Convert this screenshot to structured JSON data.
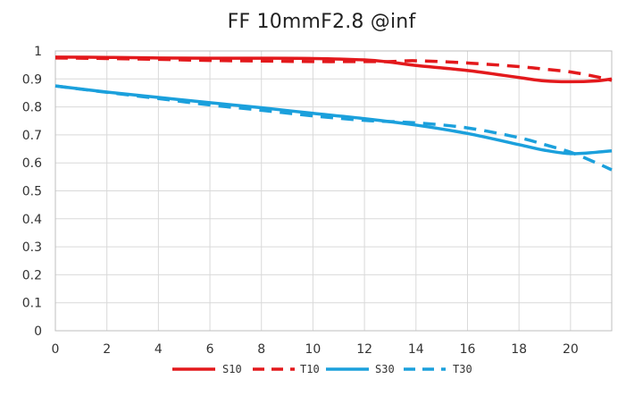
{
  "chart_data": {
    "type": "line",
    "title": "FF 10mmF2.8 @inf",
    "xlabel": "",
    "ylabel": "",
    "xlim": [
      0,
      21.6
    ],
    "ylim": [
      0,
      1
    ],
    "xticks": [
      0,
      2,
      4,
      6,
      8,
      10,
      12,
      14,
      16,
      18,
      20
    ],
    "yticks": [
      0,
      0.1,
      0.2,
      0.3,
      0.4,
      0.5,
      0.6,
      0.7,
      0.8,
      0.9,
      1
    ],
    "ytick_labels": [
      "0",
      "0.1",
      "0.2",
      "0.3",
      "0.4",
      "0.5",
      "0.6",
      "0.7",
      "0.8",
      "0.9",
      "1"
    ],
    "legend_position": "bottom",
    "series": [
      {
        "name": "S10",
        "color": "#E3191C",
        "dash": "solid",
        "points": [
          [
            0,
            0.978
          ],
          [
            2,
            0.977
          ],
          [
            4,
            0.975
          ],
          [
            6,
            0.974
          ],
          [
            8,
            0.974
          ],
          [
            10,
            0.973
          ],
          [
            12,
            0.968
          ],
          [
            13,
            0.96
          ],
          [
            14,
            0.948
          ],
          [
            16,
            0.93
          ],
          [
            18,
            0.905
          ],
          [
            19,
            0.893
          ],
          [
            20,
            0.89
          ],
          [
            21,
            0.893
          ],
          [
            21.6,
            0.9
          ]
        ]
      },
      {
        "name": "T10",
        "color": "#E3191C",
        "dash": "dashed",
        "points": [
          [
            0,
            0.975
          ],
          [
            2,
            0.973
          ],
          [
            4,
            0.97
          ],
          [
            6,
            0.966
          ],
          [
            8,
            0.964
          ],
          [
            10,
            0.962
          ],
          [
            12,
            0.962
          ],
          [
            13,
            0.962
          ],
          [
            14,
            0.965
          ],
          [
            16,
            0.957
          ],
          [
            18,
            0.944
          ],
          [
            19,
            0.935
          ],
          [
            20,
            0.925
          ],
          [
            21,
            0.908
          ],
          [
            21.6,
            0.895
          ]
        ]
      },
      {
        "name": "S30",
        "color": "#1BA0DC",
        "dash": "solid",
        "points": [
          [
            0,
            0.875
          ],
          [
            2,
            0.853
          ],
          [
            4,
            0.834
          ],
          [
            6,
            0.815
          ],
          [
            8,
            0.797
          ],
          [
            10,
            0.777
          ],
          [
            12,
            0.758
          ],
          [
            14,
            0.735
          ],
          [
            16,
            0.705
          ],
          [
            18,
            0.665
          ],
          [
            19,
            0.645
          ],
          [
            20,
            0.633
          ],
          [
            21,
            0.638
          ],
          [
            21.6,
            0.643
          ]
        ]
      },
      {
        "name": "T30",
        "color": "#1BA0DC",
        "dash": "dashed",
        "points": [
          [
            0,
            0.875
          ],
          [
            2,
            0.852
          ],
          [
            4,
            0.83
          ],
          [
            6,
            0.807
          ],
          [
            8,
            0.788
          ],
          [
            10,
            0.768
          ],
          [
            12,
            0.752
          ],
          [
            14,
            0.743
          ],
          [
            16,
            0.725
          ],
          [
            18,
            0.69
          ],
          [
            19,
            0.665
          ],
          [
            20,
            0.638
          ],
          [
            21,
            0.6
          ],
          [
            21.6,
            0.575
          ]
        ]
      }
    ]
  }
}
